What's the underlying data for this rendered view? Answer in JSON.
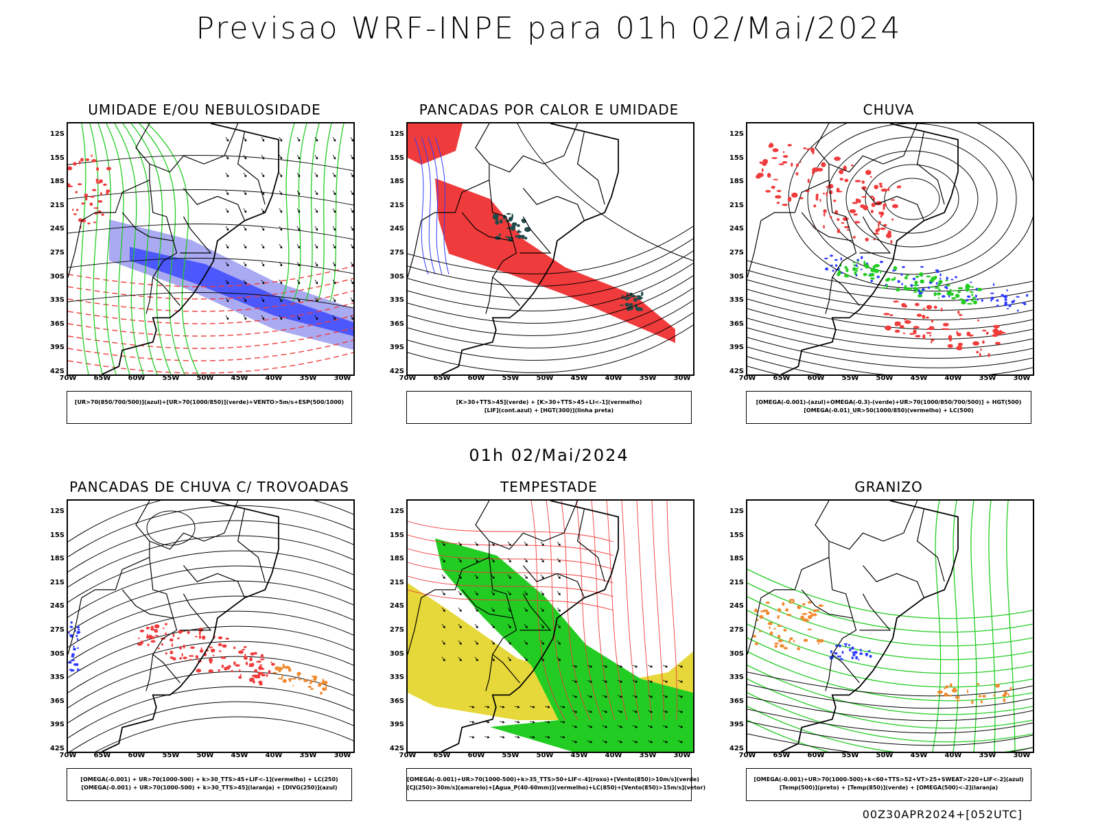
{
  "title": "Previsao WRF-INPE  para 01h 02/Mai/2024",
  "mid_date": "01h 02/Mai/2024",
  "run_id": "00Z30APR2024+[052UTC]",
  "lat_labels": [
    "12S",
    "15S",
    "18S",
    "21S",
    "24S",
    "27S",
    "30S",
    "33S",
    "36S",
    "39S",
    "42S"
  ],
  "lon_labels": [
    "70W",
    "65W",
    "60W",
    "55W",
    "50W",
    "45W",
    "40W",
    "35W",
    "30W"
  ],
  "colors": {
    "red": "#ef3b3b",
    "green": "#22cc22",
    "blue": "#2d3cff",
    "lavender": "#9b9bf0",
    "yellow": "#e6d83a",
    "orange": "#f08a30",
    "darkteal": "#1f4a48"
  },
  "panels": [
    {
      "title": "UMIDADE E/OU NEBULOSIDADE",
      "legend": [
        "[UR>70(850/700/500)](azul)+[UR>70(1000/850)](verde)+VENTO>5m/s+ESP(500/1000)"
      ]
    },
    {
      "title": "PANCADAS POR CALOR E UMIDADE",
      "legend": [
        "[K>30+TTS>45](verde)  +  [K>30+TTS>45+LI<-1](vermelho)",
        "[LIF](cont.azul)  +  [HGT(300)](linha preta)"
      ]
    },
    {
      "title": "CHUVA",
      "legend": [
        "[OMEGA(-0.001)-(azul)+OMEGA(-0.3)-(verde)+UR>70(1000/850/700/500)]  +  HGT(500)",
        "[OMEGA(-0.01)_UR>50(1000/850)(vermelho)  +  LC(500)"
      ]
    },
    {
      "title": "PANCADAS DE CHUVA C/ TROVOADAS",
      "legend": [
        "[OMEGA(-0.001)  +  UR>70(1000-500)  +  k>30_TTS>45+LIF<-1](vermelho)  +  LC(250)",
        "[OMEGA(-0.001)  +  UR>70(1000-500)  +  k>30_TTS>45](laranja)  +  [DIVG(250)](azul)"
      ]
    },
    {
      "title": "TEMPESTADE",
      "legend": [
        "[OMEGA(-0.001)+UR>70(1000-500)+k>35_TTS>50+LIF<-4](roxo)+[Vento(850)>10m/s](verde)",
        "[CJ(250)>30m/s](amarelo)+[Agua_P(40-60mm)](vermelho)+LC(850)+[Vento(850)>15m/s](vetor)"
      ]
    },
    {
      "title": "GRANIZO",
      "legend": [
        "[OMEGA(-0.001)+UR>70(1000-500)+k<60+TTS>52+VT>25+SWEAT>220+LIF<-2](azul)",
        "[Temp(500)](preto)  +  [Temp(850)](verde)  +  [OMEGA(500)<-2](laranja)"
      ]
    }
  ]
}
